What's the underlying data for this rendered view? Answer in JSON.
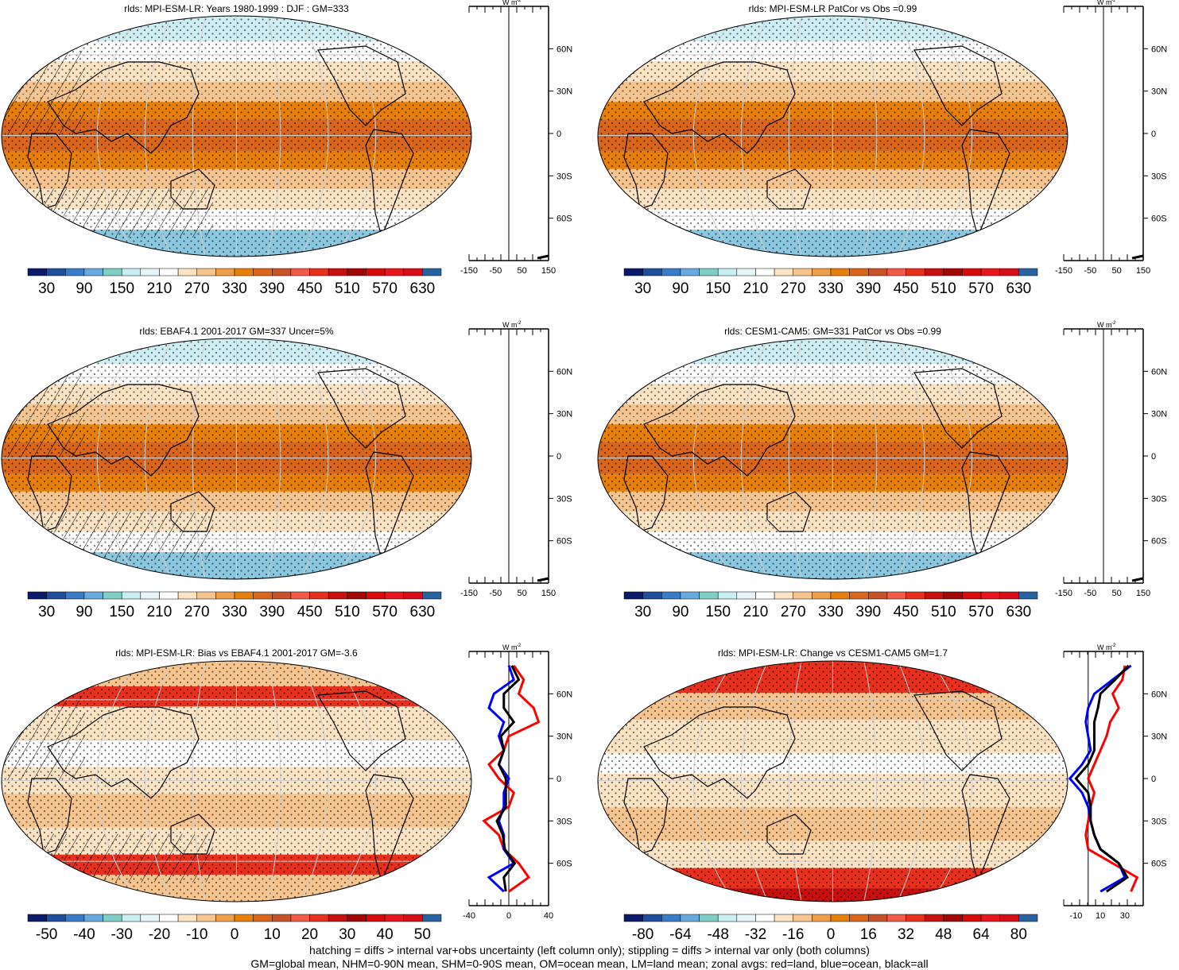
{
  "panels": [
    {
      "title": "rlds: MPI-ESM-LR: Years 1980-1999 : DJF : GM=333",
      "colorbar": [
        "30",
        "90",
        "150",
        "210",
        "270",
        "330",
        "390",
        "450",
        "510",
        "570",
        "630"
      ],
      "profile_ticks": [
        "-150",
        "-50",
        "50",
        "150"
      ],
      "kind": "clim",
      "hatch": true
    },
    {
      "title": "rlds: MPI-ESM-LR PatCor vs Obs =0.99",
      "colorbar": [
        "30",
        "90",
        "150",
        "210",
        "270",
        "330",
        "390",
        "450",
        "510",
        "570",
        "630"
      ],
      "profile_ticks": [
        "-150",
        "-50",
        "50",
        "150"
      ],
      "kind": "clim",
      "hatch": false
    },
    {
      "title": "rlds: EBAF4.1 2001-2017 GM=337 Uncer=5%",
      "colorbar": [
        "30",
        "90",
        "150",
        "210",
        "270",
        "330",
        "390",
        "450",
        "510",
        "570",
        "630"
      ],
      "profile_ticks": [
        "-150",
        "-50",
        "50",
        "150"
      ],
      "kind": "clim",
      "hatch": true
    },
    {
      "title": "rlds: CESM1-CAM5: GM=331 PatCor vs Obs =0.99",
      "colorbar": [
        "30",
        "90",
        "150",
        "210",
        "270",
        "330",
        "390",
        "450",
        "510",
        "570",
        "630"
      ],
      "profile_ticks": [
        "-150",
        "-50",
        "50",
        "150"
      ],
      "kind": "clim",
      "hatch": false
    },
    {
      "title": "rlds: MPI-ESM-LR: Bias vs EBAF4.1 2001-2017 GM=-3.6",
      "colorbar": [
        "-50",
        "-40",
        "-30",
        "-20",
        "-10",
        "0",
        "10",
        "20",
        "30",
        "40",
        "50"
      ],
      "profile_ticks": [
        "-40",
        "0",
        "40"
      ],
      "kind": "bias",
      "hatch": true
    },
    {
      "title": "rlds: MPI-ESM-LR: Change vs CESM1-CAM5 GM=1.7",
      "colorbar": [
        "-80",
        "-64",
        "-48",
        "-32",
        "-16",
        "0",
        "16",
        "32",
        "48",
        "64",
        "80"
      ],
      "profile_ticks": [
        "-10",
        "10",
        "30"
      ],
      "kind": "change",
      "hatch": false
    }
  ],
  "lat_labels": [
    "60N",
    "30N",
    "0",
    "30S",
    "60S"
  ],
  "profile_unit": "W m",
  "profile_unit_sup": "-2",
  "colorbar_colors": [
    "#0b1a6b",
    "#1f4e9c",
    "#3a7cc8",
    "#6aa9dd",
    "#7fcfc6",
    "#c8eef2",
    "#e6f5f7",
    "#ffffff",
    "#fbe3c4",
    "#f6c48f",
    "#ef9e4a",
    "#e7800a",
    "#d9661b",
    "#c7532a",
    "#f25a4a",
    "#e8301f",
    "#c81010",
    "#a00808",
    "#d70b0b",
    "#e8161e",
    "#d50e1a",
    "#27639e"
  ],
  "captions": [
    "hatching = diffs > internal var+obs uncertainty (left column only); stippling = diffs > internal var only (both columns)",
    "GM=global mean, NHM=0-90N mean, SHM=0-90S mean, OM=ocean mean, LM=land mean; zonal avgs: red=land, blue=ocean, black=all"
  ],
  "chart_data": [
    {
      "type": "heatmap",
      "title": "rlds: MPI-ESM-LR: Years 1980-1999 : DJF : GM=333",
      "colorbar_ticks": [
        30,
        90,
        150,
        210,
        270,
        330,
        390,
        450,
        510,
        570,
        630
      ],
      "ylabel_ticks": [
        "60N",
        "30N",
        "0",
        "30S",
        "60S"
      ],
      "profile_xticks": [
        -150,
        -50,
        50,
        150
      ]
    },
    {
      "type": "heatmap",
      "title": "rlds: MPI-ESM-LR PatCor vs Obs =0.99",
      "colorbar_ticks": [
        30,
        90,
        150,
        210,
        270,
        330,
        390,
        450,
        510,
        570,
        630
      ],
      "ylabel_ticks": [
        "60N",
        "30N",
        "0",
        "30S",
        "60S"
      ],
      "profile_xticks": [
        -150,
        -50,
        50,
        150
      ]
    },
    {
      "type": "heatmap",
      "title": "rlds: EBAF4.1 2001-2017 GM=337 Uncer=5%",
      "colorbar_ticks": [
        30,
        90,
        150,
        210,
        270,
        330,
        390,
        450,
        510,
        570,
        630
      ],
      "ylabel_ticks": [
        "60N",
        "30N",
        "0",
        "30S",
        "60S"
      ],
      "profile_xticks": [
        -150,
        -50,
        50,
        150
      ]
    },
    {
      "type": "heatmap",
      "title": "rlds: CESM1-CAM5: GM=331 PatCor vs Obs =0.99",
      "colorbar_ticks": [
        30,
        90,
        150,
        210,
        270,
        330,
        390,
        450,
        510,
        570,
        630
      ],
      "ylabel_ticks": [
        "60N",
        "30N",
        "0",
        "30S",
        "60S"
      ],
      "profile_xticks": [
        -150,
        -50,
        50,
        150
      ]
    },
    {
      "type": "heatmap",
      "title": "rlds: MPI-ESM-LR: Bias vs EBAF4.1 2001-2017 GM=-3.6",
      "colorbar_ticks": [
        -50,
        -40,
        -30,
        -20,
        -10,
        0,
        10,
        20,
        30,
        40,
        50
      ],
      "ylabel_ticks": [
        "60N",
        "30N",
        "0",
        "30S",
        "60S"
      ],
      "profile_xticks": [
        -40,
        0,
        40
      ],
      "zonal_profiles": [
        {
          "name": "land",
          "color": "#ff0000",
          "lat": [
            80,
            70,
            60,
            50,
            40,
            30,
            20,
            10,
            0,
            -10,
            -20,
            -30,
            -40,
            -50,
            -60,
            -70,
            -80
          ],
          "values": [
            5,
            15,
            10,
            25,
            30,
            0,
            -5,
            -20,
            -10,
            5,
            0,
            -25,
            -10,
            -5,
            10,
            20,
            0
          ]
        },
        {
          "name": "ocean",
          "color": "#0000ff",
          "lat": [
            80,
            70,
            60,
            50,
            40,
            30,
            20,
            10,
            0,
            -10,
            -20,
            -30,
            -40,
            -50,
            -60,
            -70,
            -80
          ],
          "values": [
            0,
            5,
            -15,
            -20,
            -5,
            -10,
            -5,
            -10,
            0,
            -5,
            -5,
            -10,
            -5,
            -5,
            5,
            -20,
            -5
          ]
        },
        {
          "name": "all",
          "color": "#000000",
          "lat": [
            80,
            70,
            60,
            50,
            40,
            30,
            20,
            10,
            0,
            -10,
            -20,
            -30,
            -40,
            -50,
            -60,
            -70,
            -80
          ],
          "values": [
            3,
            10,
            -5,
            -5,
            5,
            -8,
            -5,
            -10,
            -3,
            -3,
            -3,
            -12,
            -6,
            -4,
            6,
            -5,
            -3
          ]
        }
      ]
    },
    {
      "type": "heatmap",
      "title": "rlds: MPI-ESM-LR: Change vs CESM1-CAM5 GM=1.7",
      "colorbar_ticks": [
        -80,
        -64,
        -48,
        -32,
        -16,
        0,
        16,
        32,
        48,
        64,
        80
      ],
      "ylabel_ticks": [
        "60N",
        "30N",
        "0",
        "30S",
        "60S"
      ],
      "profile_xticks": [
        -10,
        10,
        30
      ],
      "zonal_profiles": [
        {
          "name": "land",
          "color": "#ff0000",
          "lat": [
            80,
            70,
            60,
            50,
            40,
            30,
            20,
            10,
            0,
            -10,
            -20,
            -30,
            -40,
            -50,
            -60,
            -70,
            -80
          ],
          "values": [
            30,
            28,
            20,
            25,
            18,
            15,
            10,
            5,
            0,
            5,
            2,
            0,
            -2,
            0,
            20,
            40,
            35
          ]
        },
        {
          "name": "ocean",
          "color": "#0000ff",
          "lat": [
            80,
            70,
            60,
            50,
            40,
            30,
            20,
            10,
            0,
            -10,
            -20,
            -30,
            -40,
            -50,
            -60,
            -70,
            -80
          ],
          "values": [
            35,
            20,
            5,
            0,
            -2,
            0,
            2,
            -5,
            -15,
            -5,
            0,
            2,
            5,
            10,
            25,
            30,
            10
          ]
        },
        {
          "name": "all",
          "color": "#000000",
          "lat": [
            80,
            70,
            60,
            50,
            40,
            30,
            20,
            10,
            0,
            -10,
            -20,
            -30,
            -40,
            -50,
            -60,
            -70,
            -80
          ],
          "values": [
            33,
            22,
            10,
            8,
            5,
            5,
            5,
            0,
            -10,
            0,
            2,
            2,
            5,
            10,
            25,
            32,
            15
          ]
        }
      ]
    }
  ]
}
